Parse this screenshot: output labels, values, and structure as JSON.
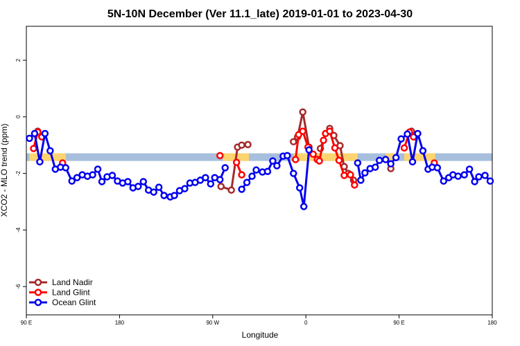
{
  "chart_data": {
    "type": "line",
    "title": "5N-10N December (Ver 11.1_late)   2019-01-01 to 2023-04-30",
    "x_label": "Longitude",
    "y_label": "XCO2 - MLO trend (ppm)",
    "xlim": [
      90,
      540
    ],
    "ylim": [
      -7,
      3.2
    ],
    "xticks": [
      {
        "value": 90,
        "label": "90 E"
      },
      180,
      {
        "value": 270,
        "label": "90 W"
      },
      {
        "value": 360,
        "label": "0"
      },
      {
        "value": 450,
        "label": "90 E"
      },
      {
        "value": 540,
        "label": "180"
      }
    ],
    "yticks": [
      -6,
      -4,
      -2,
      0,
      2
    ],
    "reference_band": {
      "ylim": [
        -1.56,
        -1.29
      ],
      "color": "#a7bfdc"
    },
    "land_regions": {
      "color": "#fdd470",
      "ranges": [
        [
          93,
          128
        ],
        [
          280,
          305
        ],
        [
          348,
          410
        ],
        [
          437,
          447
        ],
        [
          455,
          485
        ]
      ]
    },
    "legend": "bottom-left",
    "series": [
      {
        "name": "Land Nadir",
        "color": "#a52a2a",
        "x": [
          101,
          105,
          null,
          278,
          288,
          294,
          298,
          304,
          null,
          348,
          352,
          357,
          363,
          null,
          374,
          379,
          383,
          387,
          393,
          397,
          401,
          406,
          null,
          442,
          null,
          462,
          465
        ],
        "values": [
          -0.51,
          -0.71,
          null,
          -2.46,
          -2.59,
          -1.07,
          -1.0,
          -0.98,
          null,
          -0.88,
          -0.71,
          0.17,
          -1.07,
          null,
          -1.12,
          -0.59,
          -0.41,
          -0.66,
          -1.02,
          -1.76,
          -2.0,
          -2.24,
          null,
          -1.83,
          null,
          -0.51,
          -0.71
        ]
      },
      {
        "name": "Land Glint",
        "color": "#ff0000",
        "x": [
          97,
          101,
          105,
          null,
          125,
          null,
          277,
          null,
          293,
          298,
          null,
          350,
          353,
          357,
          362,
          367,
          371,
          373,
          377,
          379,
          383,
          388,
          392,
          397,
          403,
          407,
          null,
          455,
          460,
          464,
          null,
          484
        ],
        "values": [
          -1.12,
          -0.54,
          -0.71,
          null,
          -1.63,
          null,
          -1.37,
          null,
          -1.61,
          -2.05,
          null,
          -1.51,
          -0.63,
          -0.51,
          -1.07,
          -1.32,
          -1.51,
          -1.56,
          -0.83,
          -0.59,
          -0.51,
          -1.1,
          -1.54,
          -2.07,
          -2.05,
          -2.41,
          null,
          -1.1,
          -0.54,
          -0.71,
          null,
          -1.63
        ]
      },
      {
        "name": "Ocean Glint",
        "color": "#0000ee",
        "x": [
          93,
          98,
          103,
          108,
          113,
          118,
          123,
          128,
          134,
          139,
          144,
          149,
          154,
          159,
          163,
          168,
          173,
          178,
          183,
          188,
          193,
          198,
          203,
          208,
          213,
          218,
          223,
          229,
          233,
          238,
          243,
          248,
          253,
          258,
          263,
          268,
          272,
          277,
          282,
          null,
          298,
          303,
          308,
          312,
          318,
          323,
          328,
          332,
          338,
          342,
          348,
          354,
          358,
          363,
          null,
          410,
          413,
          417,
          422,
          427,
          431,
          437,
          442,
          447,
          452,
          458,
          463,
          468,
          473,
          478,
          482,
          487,
          493,
          498,
          502,
          507,
          513,
          518,
          523,
          527,
          533,
          538
        ],
        "values": [
          -0.76,
          -0.59,
          -1.59,
          -0.59,
          -1.2,
          -1.85,
          -1.78,
          -1.8,
          -2.27,
          -2.15,
          -2.05,
          -2.1,
          -2.05,
          -1.85,
          -2.29,
          -2.12,
          -2.07,
          -2.27,
          -2.34,
          -2.29,
          -2.51,
          -2.46,
          -2.29,
          -2.59,
          -2.66,
          -2.49,
          -2.78,
          -2.83,
          -2.78,
          -2.61,
          -2.54,
          -2.34,
          -2.32,
          -2.24,
          -2.15,
          -2.37,
          -2.15,
          -2.22,
          -1.8,
          null,
          -2.56,
          -2.32,
          -2.1,
          -1.88,
          -1.95,
          -1.93,
          -1.56,
          -1.73,
          -1.39,
          -1.37,
          -2.0,
          -2.51,
          -3.17,
          -1.17,
          null,
          -1.63,
          -2.24,
          -1.98,
          -1.83,
          -1.78,
          -1.54,
          -1.51,
          -1.66,
          -1.44,
          -0.78,
          -0.61,
          -1.59,
          -0.59,
          -1.2,
          -1.85,
          -1.78,
          -1.8,
          -2.27,
          -2.15,
          -2.05,
          -2.1,
          -2.05,
          -1.85,
          -2.29,
          -2.12,
          -2.07,
          -2.27
        ]
      }
    ]
  }
}
